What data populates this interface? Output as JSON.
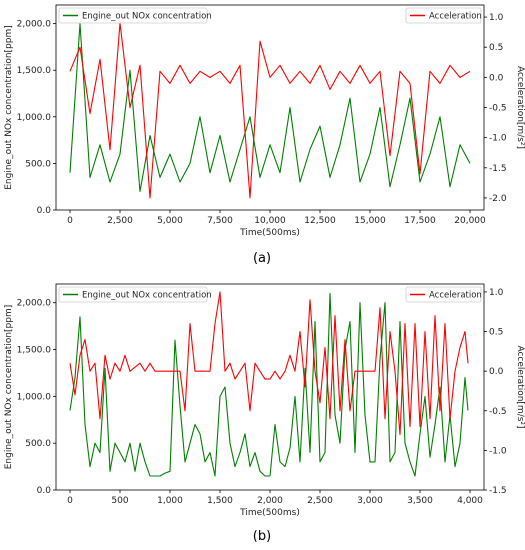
{
  "chart_data": [
    {
      "type": "line",
      "caption": "(a)",
      "xlabel": "Time(500ms)",
      "ylabel_left": "Engine_out NOx concentration[ppm]",
      "ylabel_right": "Acceleration[m/s²]",
      "xlim": [
        0,
        20000
      ],
      "ylim_left": [
        0,
        2200
      ],
      "ylim_right": [
        -2.2,
        1.2
      ],
      "x_ticks": [
        {
          "value": 0,
          "label": "0"
        },
        {
          "value": 2500,
          "label": "2,500"
        },
        {
          "value": 5000,
          "label": "5,000"
        },
        {
          "value": 7500,
          "label": "7,500"
        },
        {
          "value": 10000,
          "label": "10,000"
        },
        {
          "value": 12500,
          "label": "12,500"
        },
        {
          "value": 15000,
          "label": "15,000"
        },
        {
          "value": 17500,
          "label": "17,500"
        },
        {
          "value": 20000,
          "label": "20,000"
        }
      ],
      "y_left_ticks": [
        {
          "value": 0,
          "label": "0.0"
        },
        {
          "value": 500,
          "label": "500.0"
        },
        {
          "value": 1000,
          "label": "1,000.0"
        },
        {
          "value": 1500,
          "label": "1,500.0"
        },
        {
          "value": 2000,
          "label": "2,000.0"
        }
      ],
      "y_right_ticks": [
        {
          "value": -2.0,
          "label": "-2.0"
        },
        {
          "value": -1.5,
          "label": "-1.5"
        },
        {
          "value": -1.0,
          "label": "-1.0"
        },
        {
          "value": -0.5,
          "label": "-0.5"
        },
        {
          "value": 0.0,
          "label": "0.0"
        },
        {
          "value": 0.5,
          "label": "0.5"
        },
        {
          "value": 1.0,
          "label": "1.0"
        }
      ],
      "series": [
        {
          "name": "Engine_out NOx concentration",
          "axis": "left",
          "color": "#008000",
          "x": [
            0,
            500,
            1000,
            1500,
            2000,
            2500,
            3000,
            3500,
            4000,
            4500,
            5000,
            5500,
            6000,
            6500,
            7000,
            7500,
            8000,
            8500,
            9000,
            9500,
            10000,
            10500,
            11000,
            11500,
            12000,
            12500,
            13000,
            13500,
            14000,
            14500,
            15000,
            15500,
            16000,
            16500,
            17000,
            17500,
            18000,
            18500,
            19000,
            19500,
            20000
          ],
          "values": [
            400,
            2000,
            350,
            700,
            300,
            600,
            1500,
            200,
            800,
            350,
            600,
            300,
            500,
            1000,
            400,
            800,
            300,
            650,
            1000,
            350,
            700,
            400,
            1100,
            300,
            650,
            900,
            350,
            700,
            1200,
            300,
            600,
            1100,
            250,
            700,
            1200,
            300,
            600,
            1000,
            250,
            700,
            500
          ]
        },
        {
          "name": "Acceleration",
          "axis": "right",
          "color": "#ff0000",
          "x": [
            0,
            500,
            1000,
            1500,
            2000,
            2500,
            3000,
            3500,
            4000,
            4500,
            5000,
            5500,
            6000,
            6500,
            7000,
            7500,
            8000,
            8500,
            9000,
            9500,
            10000,
            10500,
            11000,
            11500,
            12000,
            12500,
            13000,
            13500,
            14000,
            14500,
            15000,
            15500,
            16000,
            16500,
            17000,
            17500,
            18000,
            18500,
            19000,
            19500,
            20000
          ],
          "values": [
            0.1,
            0.5,
            -0.6,
            0.3,
            -1.2,
            0.9,
            -0.5,
            0.2,
            -2.0,
            0.1,
            -0.1,
            0.2,
            -0.1,
            0.1,
            0.0,
            0.1,
            -0.1,
            0.2,
            -2.0,
            0.6,
            0.0,
            0.2,
            -0.1,
            0.1,
            -0.1,
            0.2,
            -0.2,
            0.1,
            -0.1,
            0.2,
            -0.1,
            0.1,
            -1.3,
            0.1,
            -0.1,
            -1.6,
            0.1,
            -0.1,
            0.2,
            0.0,
            0.1
          ]
        }
      ],
      "legend": [
        "top-left",
        "top-right"
      ],
      "grid": false
    },
    {
      "type": "line",
      "caption": "(b)",
      "xlabel": "Time(500ms)",
      "ylabel_left": "Engine_out NOx concentration[ppm]",
      "ylabel_right": "Acceleration[m/s²]",
      "xlim": [
        0,
        4000
      ],
      "ylim_left": [
        0,
        2200
      ],
      "ylim_right": [
        -1.5,
        1.1
      ],
      "x_ticks": [
        {
          "value": 0,
          "label": "0"
        },
        {
          "value": 500,
          "label": "500"
        },
        {
          "value": 1000,
          "label": "1,000"
        },
        {
          "value": 1500,
          "label": "1,500"
        },
        {
          "value": 2000,
          "label": "2,000"
        },
        {
          "value": 2500,
          "label": "2,500"
        },
        {
          "value": 3000,
          "label": "3,000"
        },
        {
          "value": 3500,
          "label": "3,500"
        },
        {
          "value": 4000,
          "label": "4,000"
        }
      ],
      "y_left_ticks": [
        {
          "value": 0,
          "label": "0.0"
        },
        {
          "value": 500,
          "label": "500.0"
        },
        {
          "value": 1000,
          "label": "1,000.0"
        },
        {
          "value": 1500,
          "label": "1,500.0"
        },
        {
          "value": 2000,
          "label": "2,000.0"
        }
      ],
      "y_right_ticks": [
        {
          "value": -1.5,
          "label": "-1.5"
        },
        {
          "value": -1.0,
          "label": "-1.0"
        },
        {
          "value": -0.5,
          "label": "-0.5"
        },
        {
          "value": 0.0,
          "label": "0.0"
        },
        {
          "value": 0.5,
          "label": "0.5"
        },
        {
          "value": 1.0,
          "label": "1.0"
        }
      ],
      "series": [
        {
          "name": "Engine_out NOx concentration",
          "axis": "left",
          "color": "#008000",
          "x": [
            0,
            50,
            100,
            150,
            200,
            250,
            300,
            350,
            400,
            450,
            500,
            550,
            600,
            650,
            700,
            750,
            800,
            850,
            900,
            950,
            1000,
            1050,
            1100,
            1150,
            1200,
            1250,
            1300,
            1350,
            1400,
            1450,
            1500,
            1550,
            1600,
            1650,
            1700,
            1750,
            1800,
            1850,
            1900,
            1950,
            2000,
            2050,
            2100,
            2150,
            2200,
            2250,
            2300,
            2350,
            2400,
            2450,
            2500,
            2550,
            2600,
            2650,
            2700,
            2750,
            2800,
            2850,
            2900,
            2950,
            3000,
            3050,
            3100,
            3150,
            3200,
            3250,
            3300,
            3350,
            3400,
            3450,
            3500,
            3550,
            3600,
            3650,
            3700,
            3750,
            3800,
            3850,
            3900,
            3950,
            3980
          ],
          "values": [
            850,
            1200,
            1850,
            700,
            250,
            500,
            400,
            1300,
            200,
            500,
            400,
            300,
            500,
            200,
            500,
            300,
            150,
            150,
            150,
            180,
            200,
            1600,
            900,
            300,
            500,
            700,
            600,
            300,
            400,
            150,
            1000,
            1100,
            500,
            250,
            400,
            600,
            250,
            400,
            200,
            150,
            150,
            700,
            300,
            250,
            450,
            1000,
            300,
            1300,
            400,
            1800,
            300,
            400,
            2100,
            800,
            500,
            1500,
            1800,
            400,
            2000,
            800,
            300,
            300,
            1400,
            2000,
            300,
            400,
            1800,
            500,
            300,
            150,
            600,
            1000,
            350,
            700,
            1100,
            300,
            800,
            250,
            500,
            1200,
            850
          ]
        },
        {
          "name": "Acceleration",
          "axis": "right",
          "color": "#ff0000",
          "x": [
            0,
            50,
            100,
            150,
            200,
            250,
            300,
            350,
            400,
            450,
            500,
            550,
            600,
            650,
            700,
            750,
            800,
            850,
            900,
            950,
            1000,
            1050,
            1100,
            1150,
            1200,
            1250,
            1300,
            1350,
            1400,
            1450,
            1500,
            1550,
            1600,
            1650,
            1700,
            1750,
            1800,
            1850,
            1900,
            1950,
            2000,
            2050,
            2100,
            2150,
            2200,
            2250,
            2300,
            2350,
            2400,
            2450,
            2500,
            2550,
            2600,
            2650,
            2700,
            2750,
            2800,
            2850,
            2900,
            2950,
            3000,
            3050,
            3100,
            3150,
            3200,
            3250,
            3300,
            3350,
            3400,
            3450,
            3500,
            3550,
            3600,
            3650,
            3700,
            3750,
            3800,
            3850,
            3900,
            3950,
            3980
          ],
          "values": [
            0.1,
            -0.3,
            0.2,
            0.4,
            0.0,
            0.1,
            -0.6,
            0.2,
            -0.1,
            0.1,
            0.0,
            0.2,
            0.0,
            0.05,
            0.1,
            0.0,
            0.1,
            0.0,
            0.0,
            0.0,
            0.0,
            0.0,
            0.0,
            -0.5,
            0.6,
            0.0,
            0.0,
            0.0,
            0.0,
            0.6,
            1.0,
            0.0,
            0.1,
            -0.1,
            0.0,
            0.1,
            -0.5,
            0.1,
            0.0,
            -0.1,
            -0.1,
            0.0,
            -0.1,
            0.0,
            0.2,
            0.0,
            0.5,
            -0.2,
            0.9,
            0.0,
            -0.4,
            0.3,
            -0.6,
            0.7,
            -0.5,
            0.4,
            -0.5,
            0.0,
            0.0,
            0.0,
            0.0,
            0.0,
            0.8,
            -0.6,
            0.5,
            0.0,
            -0.8,
            0.6,
            -0.7,
            0.6,
            -0.7,
            0.5,
            -0.6,
            0.7,
            -0.5,
            0.6,
            -0.6,
            0.0,
            0.3,
            0.5,
            0.1
          ]
        }
      ],
      "legend": [
        "top-left",
        "top-right"
      ],
      "grid": false
    }
  ]
}
